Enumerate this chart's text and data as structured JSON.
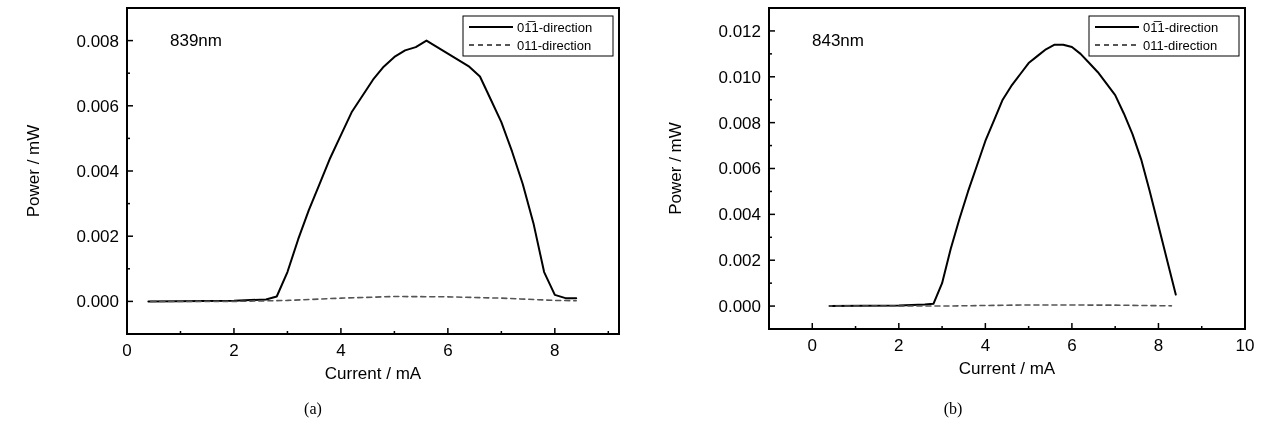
{
  "chart_data": [
    {
      "type": "line",
      "xlabel": "Current / mA",
      "ylabel": "Power / mW",
      "annotations": [
        "839nm",
        "(a)"
      ],
      "xlim": [
        0,
        9.2
      ],
      "xticks": [
        0,
        {
          "value": 1,
          "label": null
        },
        2,
        {
          "value": 3,
          "label": null
        },
        4,
        {
          "value": 5,
          "label": null
        },
        6,
        {
          "value": 7,
          "label": null
        },
        8,
        {
          "value": 9,
          "label": null
        }
      ],
      "ylim": [
        -0.001,
        0.009
      ],
      "yticks": [
        {
          "value": -0.001,
          "label": null
        },
        {
          "value": 0,
          "label": "0.000"
        },
        {
          "value": 0.001,
          "label": null
        },
        {
          "value": 0.002,
          "label": "0.002"
        },
        {
          "value": 0.003,
          "label": null
        },
        {
          "value": 0.004,
          "label": "0.004"
        },
        {
          "value": 0.005,
          "label": null
        },
        {
          "value": 0.006,
          "label": "0.006"
        },
        {
          "value": 0.007,
          "label": null
        },
        {
          "value": 0.008,
          "label": "0.008"
        },
        {
          "value": 0.009,
          "label": null
        }
      ],
      "legend": "top right",
      "grid": false,
      "marker": "none",
      "series": [
        {
          "name": "01̅1-direction",
          "color": "#000000",
          "line_style": "solid",
          "x": [
            0.4,
            2,
            2.6,
            2.8,
            3.0,
            3.2,
            3.4,
            3.6,
            3.8,
            4.0,
            4.2,
            4.4,
            4.6,
            4.8,
            5.0,
            5.2,
            5.4,
            5.6,
            5.8,
            6.0,
            6.2,
            6.4,
            6.6,
            6.8,
            7.0,
            7.2,
            7.4,
            7.6,
            7.8,
            8.0,
            8.2,
            8.4
          ],
          "values": [
            0,
            2e-05,
            6e-05,
            0.00015,
            0.0009,
            0.0019,
            0.0028,
            0.0036,
            0.0044,
            0.0051,
            0.0058,
            0.0063,
            0.0068,
            0.0072,
            0.0075,
            0.0077,
            0.0078,
            0.008,
            0.0078,
            0.0076,
            0.0074,
            0.0072,
            0.0069,
            0.0062,
            0.0055,
            0.0046,
            0.0036,
            0.0024,
            0.0009,
            0.0002,
            0.0001,
            0.0001
          ]
        },
        {
          "name": "011-direction",
          "color": "#555555",
          "line_style": "dashed",
          "x": [
            0.4,
            2,
            3,
            4,
            5,
            6,
            7,
            8,
            8.4
          ],
          "values": [
            0,
            0,
            3e-05,
            0.0001,
            0.00015,
            0.00014,
            0.0001,
            3e-05,
            2e-05
          ]
        }
      ]
    },
    {
      "type": "line",
      "xlabel": "Current / mA",
      "ylabel": "Power / mW",
      "annotations": [
        "843nm",
        "(b)"
      ],
      "xlim": [
        -1,
        10
      ],
      "xticks": [
        0,
        {
          "value": 1,
          "label": null
        },
        2,
        {
          "value": 3,
          "label": null
        },
        4,
        {
          "value": 5,
          "label": null
        },
        6,
        {
          "value": 7,
          "label": null
        },
        8,
        {
          "value": 9,
          "label": null
        },
        10
      ],
      "ylim": [
        -0.001,
        0.013
      ],
      "yticks": [
        {
          "value": -0.001,
          "label": null
        },
        {
          "value": 0,
          "label": "0.000"
        },
        {
          "value": 0.001,
          "label": null
        },
        {
          "value": 0.002,
          "label": "0.002"
        },
        {
          "value": 0.003,
          "label": null
        },
        {
          "value": 0.004,
          "label": "0.004"
        },
        {
          "value": 0.005,
          "label": null
        },
        {
          "value": 0.006,
          "label": "0.006"
        },
        {
          "value": 0.007,
          "label": null
        },
        {
          "value": 0.008,
          "label": "0.008"
        },
        {
          "value": 0.009,
          "label": null
        },
        {
          "value": 0.01,
          "label": "0.010"
        },
        {
          "value": 0.011,
          "label": null
        },
        {
          "value": 0.012,
          "label": "0.012"
        },
        {
          "value": 0.013,
          "label": null
        }
      ],
      "legend": "top right",
      "grid": false,
      "marker": "none",
      "series": [
        {
          "name": "01̅1-direction",
          "color": "#000000",
          "line_style": "solid",
          "x": [
            0.4,
            2,
            2.6,
            2.8,
            3.0,
            3.2,
            3.4,
            3.6,
            3.8,
            4.0,
            4.2,
            4.4,
            4.6,
            4.8,
            5.0,
            5.2,
            5.4,
            5.6,
            5.8,
            6.0,
            6.2,
            6.4,
            6.6,
            6.8,
            7.0,
            7.2,
            7.4,
            7.6,
            7.8,
            8.0,
            8.2,
            8.4
          ],
          "values": [
            0,
            3e-05,
            7e-05,
            0.0001,
            0.001,
            0.0025,
            0.0038,
            0.005,
            0.0061,
            0.0072,
            0.0081,
            0.009,
            0.0096,
            0.0101,
            0.0106,
            0.0109,
            0.0112,
            0.0114,
            0.0114,
            0.0113,
            0.011,
            0.0106,
            0.0102,
            0.0097,
            0.0092,
            0.0084,
            0.0075,
            0.0064,
            0.005,
            0.0035,
            0.002,
            0.0005
          ]
        },
        {
          "name": "011-direction",
          "color": "#555555",
          "line_style": "dashed",
          "x": [
            0.4,
            3,
            5,
            7,
            8.3
          ],
          "values": [
            0,
            0,
            5e-05,
            4e-05,
            1e-05
          ]
        }
      ]
    }
  ]
}
